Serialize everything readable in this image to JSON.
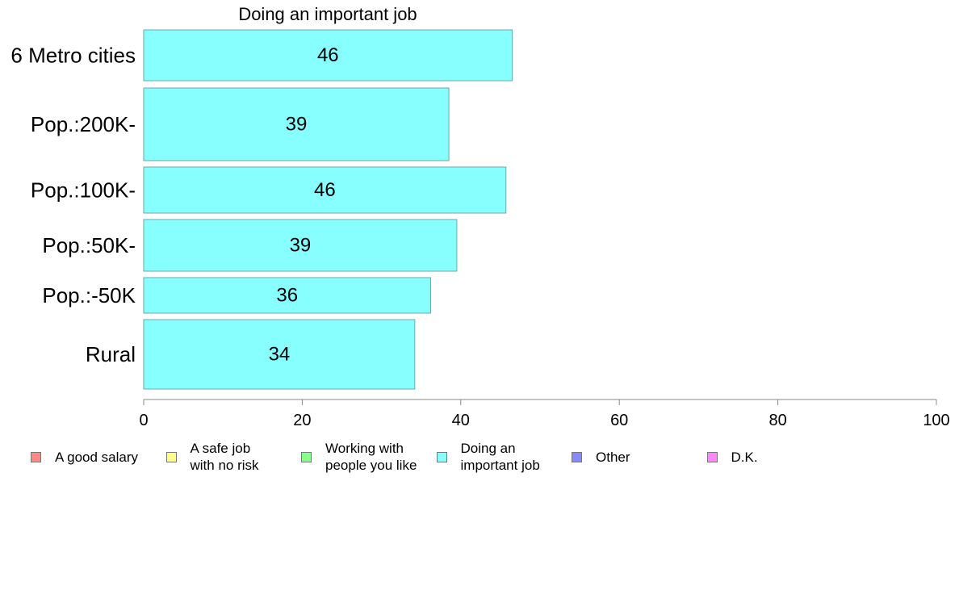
{
  "chart_data": {
    "type": "bar",
    "orientation": "horizontal",
    "title": "Doing an important job",
    "categories": [
      "6 Metro cities",
      "Pop.:200K-",
      "Pop.:100K-",
      "Pop.:50K-",
      "Pop.:-50K",
      "Rural"
    ],
    "values": [
      46.5,
      38.5,
      45.7,
      39.5,
      36.2,
      34.2
    ],
    "data_labels": [
      "46",
      "39",
      "46",
      "39",
      "36",
      "34"
    ],
    "xlim": [
      0,
      100
    ],
    "xticks": [
      "0",
      "20",
      "40",
      "60",
      "80",
      "100"
    ],
    "grid": false,
    "bar_color": "#88ffff",
    "bar_edge_color": "#6aa8a8",
    "legend_position": "bottom",
    "legend": [
      {
        "label": "A good salary",
        "color": "#ff8888"
      },
      {
        "label": "A safe job\nwith no risk",
        "color": "#ffff88"
      },
      {
        "label": "Working with\npeople you like",
        "color": "#88ff88"
      },
      {
        "label": "Doing an\nimportant job",
        "color": "#88ffff"
      },
      {
        "label": "Other",
        "color": "#8888ff"
      },
      {
        "label": "D.K.",
        "color": "#ff88ff"
      }
    ]
  }
}
